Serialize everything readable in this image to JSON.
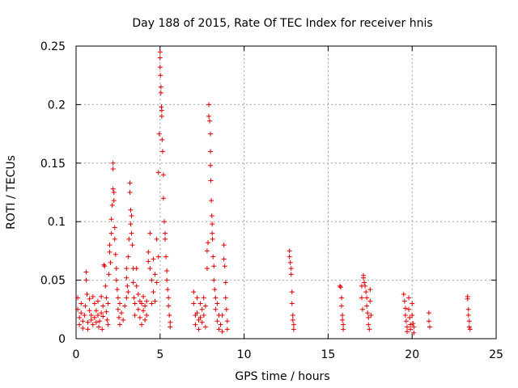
{
  "chart_data": {
    "type": "scatter",
    "title": "Day 188 of 2015, Rate Of TEC Index for receiver hnis",
    "xlabel": "GPS time / hours",
    "ylabel": "ROTI / TECUs",
    "xlim": [
      0,
      25
    ],
    "ylim": [
      0,
      0.25
    ],
    "x_ticks": [
      0,
      5,
      10,
      15,
      20,
      25
    ],
    "x_tick_labels": [
      "0",
      "5",
      "10",
      "15",
      "20",
      "25"
    ],
    "y_ticks": [
      0,
      0.05,
      0.1,
      0.15,
      0.2,
      0.25
    ],
    "y_tick_labels": [
      "0",
      "0.05",
      "0.1",
      "0.15",
      "0.2",
      "0.25"
    ],
    "grid": true,
    "marker": "+",
    "marker_color": "#e00000",
    "series": [
      {
        "name": "ROTI",
        "points": [
          [
            0.1,
            0.035
          ],
          [
            0.1,
            0.025
          ],
          [
            0.2,
            0.018
          ],
          [
            0.2,
            0.012
          ],
          [
            0.3,
            0.03
          ],
          [
            0.3,
            0.022
          ],
          [
            0.4,
            0.015
          ],
          [
            0.4,
            0.009
          ],
          [
            0.5,
            0.02
          ],
          [
            0.55,
            0.028
          ],
          [
            0.6,
            0.057
          ],
          [
            0.6,
            0.05
          ],
          [
            0.65,
            0.038
          ],
          [
            0.7,
            0.014
          ],
          [
            0.7,
            0.008
          ],
          [
            0.8,
            0.034
          ],
          [
            0.8,
            0.024
          ],
          [
            0.9,
            0.02
          ],
          [
            0.9,
            0.016
          ],
          [
            1.0,
            0.036
          ],
          [
            1.0,
            0.012
          ],
          [
            1.1,
            0.03
          ],
          [
            1.1,
            0.018
          ],
          [
            1.2,
            0.024
          ],
          [
            1.2,
            0.014
          ],
          [
            1.3,
            0.032
          ],
          [
            1.3,
            0.02
          ],
          [
            1.35,
            0.01
          ],
          [
            1.4,
            0.015
          ],
          [
            1.5,
            0.036
          ],
          [
            1.5,
            0.022
          ],
          [
            1.55,
            0.008
          ],
          [
            1.6,
            0.028
          ],
          [
            1.6,
            0.019
          ],
          [
            1.65,
            0.063
          ],
          [
            1.7,
            0.062
          ],
          [
            1.75,
            0.045
          ],
          [
            1.8,
            0.035
          ],
          [
            1.8,
            0.023
          ],
          [
            1.85,
            0.016
          ],
          [
            1.9,
            0.03
          ],
          [
            1.9,
            0.012
          ],
          [
            1.95,
            0.055
          ],
          [
            2.0,
            0.08
          ],
          [
            2.0,
            0.074
          ],
          [
            2.05,
            0.065
          ],
          [
            2.1,
            0.102
          ],
          [
            2.1,
            0.09
          ],
          [
            2.15,
            0.114
          ],
          [
            2.2,
            0.15
          ],
          [
            2.2,
            0.145
          ],
          [
            2.2,
            0.128
          ],
          [
            2.25,
            0.125
          ],
          [
            2.25,
            0.118
          ],
          [
            2.3,
            0.095
          ],
          [
            2.3,
            0.085
          ],
          [
            2.35,
            0.072
          ],
          [
            2.4,
            0.06
          ],
          [
            2.4,
            0.05
          ],
          [
            2.45,
            0.042
          ],
          [
            2.5,
            0.035
          ],
          [
            2.5,
            0.025
          ],
          [
            2.55,
            0.018
          ],
          [
            2.6,
            0.03
          ],
          [
            2.6,
            0.012
          ],
          [
            2.7,
            0.022
          ],
          [
            2.8,
            0.016
          ],
          [
            2.9,
            0.028
          ],
          [
            3.0,
            0.035
          ],
          [
            3.0,
            0.06
          ],
          [
            3.0,
            0.052
          ],
          [
            3.05,
            0.045
          ],
          [
            3.1,
            0.04
          ],
          [
            3.1,
            0.07
          ],
          [
            3.15,
            0.085
          ],
          [
            3.2,
            0.133
          ],
          [
            3.2,
            0.125
          ],
          [
            3.25,
            0.11
          ],
          [
            3.25,
            0.098
          ],
          [
            3.3,
            0.105
          ],
          [
            3.3,
            0.09
          ],
          [
            3.35,
            0.08
          ],
          [
            3.4,
            0.06
          ],
          [
            3.4,
            0.048
          ],
          [
            3.45,
            0.035
          ],
          [
            3.5,
            0.03
          ],
          [
            3.5,
            0.02
          ],
          [
            3.6,
            0.06
          ],
          [
            3.6,
            0.045
          ],
          [
            3.7,
            0.038
          ],
          [
            3.7,
            0.025
          ],
          [
            3.8,
            0.032
          ],
          [
            3.8,
            0.018
          ],
          [
            3.9,
            0.03
          ],
          [
            3.9,
            0.012
          ],
          [
            4.0,
            0.036
          ],
          [
            4.0,
            0.024
          ],
          [
            4.1,
            0.028
          ],
          [
            4.1,
            0.016
          ],
          [
            4.2,
            0.032
          ],
          [
            4.2,
            0.02
          ],
          [
            4.3,
            0.074
          ],
          [
            4.3,
            0.066
          ],
          [
            4.4,
            0.09
          ],
          [
            4.4,
            0.06
          ],
          [
            4.5,
            0.05
          ],
          [
            4.5,
            0.03
          ],
          [
            4.6,
            0.068
          ],
          [
            4.6,
            0.04
          ],
          [
            4.7,
            0.055
          ],
          [
            4.7,
            0.032
          ],
          [
            4.8,
            0.085
          ],
          [
            4.8,
            0.048
          ],
          [
            4.9,
            0.142
          ],
          [
            4.9,
            0.07
          ],
          [
            4.95,
            0.175
          ],
          [
            5.0,
            0.245
          ],
          [
            5.0,
            0.24
          ],
          [
            5.0,
            0.232
          ],
          [
            5.02,
            0.225
          ],
          [
            5.05,
            0.215
          ],
          [
            5.05,
            0.21
          ],
          [
            5.08,
            0.198
          ],
          [
            5.1,
            0.195
          ],
          [
            5.1,
            0.19
          ],
          [
            5.12,
            0.17
          ],
          [
            5.15,
            0.16
          ],
          [
            5.2,
            0.14
          ],
          [
            5.2,
            0.12
          ],
          [
            5.25,
            0.1
          ],
          [
            5.3,
            0.09
          ],
          [
            5.3,
            0.085
          ],
          [
            5.35,
            0.07
          ],
          [
            5.4,
            0.058
          ],
          [
            5.4,
            0.05
          ],
          [
            5.45,
            0.042
          ],
          [
            5.5,
            0.035
          ],
          [
            5.5,
            0.028
          ],
          [
            5.55,
            0.02
          ],
          [
            5.6,
            0.014
          ],
          [
            5.6,
            0.01
          ],
          [
            7.0,
            0.04
          ],
          [
            7.0,
            0.03
          ],
          [
            7.1,
            0.02
          ],
          [
            7.1,
            0.012
          ],
          [
            7.2,
            0.035
          ],
          [
            7.2,
            0.022
          ],
          [
            7.3,
            0.016
          ],
          [
            7.3,
            0.008
          ],
          [
            7.4,
            0.03
          ],
          [
            7.4,
            0.018
          ],
          [
            7.5,
            0.025
          ],
          [
            7.5,
            0.014
          ],
          [
            7.6,
            0.035
          ],
          [
            7.6,
            0.02
          ],
          [
            7.7,
            0.028
          ],
          [
            7.7,
            0.01
          ],
          [
            7.8,
            0.06
          ],
          [
            7.8,
            0.075
          ],
          [
            7.85,
            0.082
          ],
          [
            7.9,
            0.2
          ],
          [
            7.9,
            0.19
          ],
          [
            7.95,
            0.186
          ],
          [
            8.0,
            0.175
          ],
          [
            8.0,
            0.16
          ],
          [
            8.0,
            0.148
          ],
          [
            8.02,
            0.135
          ],
          [
            8.05,
            0.118
          ],
          [
            8.08,
            0.105
          ],
          [
            8.1,
            0.098
          ],
          [
            8.1,
            0.09
          ],
          [
            8.12,
            0.085
          ],
          [
            8.15,
            0.07
          ],
          [
            8.2,
            0.062
          ],
          [
            8.2,
            0.05
          ],
          [
            8.25,
            0.042
          ],
          [
            8.3,
            0.035
          ],
          [
            8.3,
            0.025
          ],
          [
            8.4,
            0.03
          ],
          [
            8.4,
            0.015
          ],
          [
            8.5,
            0.02
          ],
          [
            8.5,
            0.008
          ],
          [
            8.6,
            0.012
          ],
          [
            8.7,
            0.02
          ],
          [
            8.7,
            0.006
          ],
          [
            8.8,
            0.08
          ],
          [
            8.8,
            0.068
          ],
          [
            8.85,
            0.062
          ],
          [
            8.9,
            0.048
          ],
          [
            8.9,
            0.035
          ],
          [
            8.95,
            0.025
          ],
          [
            9.0,
            0.015
          ],
          [
            9.0,
            0.008
          ],
          [
            12.7,
            0.075
          ],
          [
            12.7,
            0.07
          ],
          [
            12.75,
            0.065
          ],
          [
            12.8,
            0.06
          ],
          [
            12.8,
            0.055
          ],
          [
            12.85,
            0.04
          ],
          [
            12.85,
            0.03
          ],
          [
            12.9,
            0.02
          ],
          [
            12.9,
            0.016
          ],
          [
            12.95,
            0.012
          ],
          [
            12.95,
            0.008
          ],
          [
            15.7,
            0.045
          ],
          [
            15.75,
            0.044
          ],
          [
            15.8,
            0.035
          ],
          [
            15.8,
            0.028
          ],
          [
            15.85,
            0.02
          ],
          [
            15.85,
            0.016
          ],
          [
            15.9,
            0.012
          ],
          [
            15.9,
            0.008
          ],
          [
            17.0,
            0.045
          ],
          [
            17.0,
            0.035
          ],
          [
            17.05,
            0.025
          ],
          [
            17.1,
            0.054
          ],
          [
            17.1,
            0.052
          ],
          [
            17.15,
            0.048
          ],
          [
            17.2,
            0.045
          ],
          [
            17.25,
            0.04
          ],
          [
            17.3,
            0.035
          ],
          [
            17.3,
            0.028
          ],
          [
            17.35,
            0.022
          ],
          [
            17.4,
            0.018
          ],
          [
            17.4,
            0.012
          ],
          [
            17.45,
            0.008
          ],
          [
            17.5,
            0.042
          ],
          [
            17.5,
            0.032
          ],
          [
            17.55,
            0.02
          ],
          [
            19.5,
            0.038
          ],
          [
            19.55,
            0.032
          ],
          [
            19.6,
            0.026
          ],
          [
            19.6,
            0.02
          ],
          [
            19.65,
            0.015
          ],
          [
            19.7,
            0.01
          ],
          [
            19.7,
            0.006
          ],
          [
            19.8,
            0.035
          ],
          [
            19.8,
            0.025
          ],
          [
            19.85,
            0.018
          ],
          [
            19.9,
            0.012
          ],
          [
            19.9,
            0.008
          ],
          [
            20.0,
            0.03
          ],
          [
            20.0,
            0.02
          ],
          [
            20.05,
            0.013
          ],
          [
            20.1,
            0.01
          ],
          [
            20.1,
            0.005
          ],
          [
            21.0,
            0.022
          ],
          [
            21.0,
            0.015
          ],
          [
            21.05,
            0.01
          ],
          [
            23.3,
            0.036
          ],
          [
            23.3,
            0.034
          ],
          [
            23.35,
            0.025
          ],
          [
            23.35,
            0.02
          ],
          [
            23.4,
            0.015
          ],
          [
            23.4,
            0.01
          ],
          [
            23.45,
            0.008
          ]
        ]
      }
    ]
  }
}
